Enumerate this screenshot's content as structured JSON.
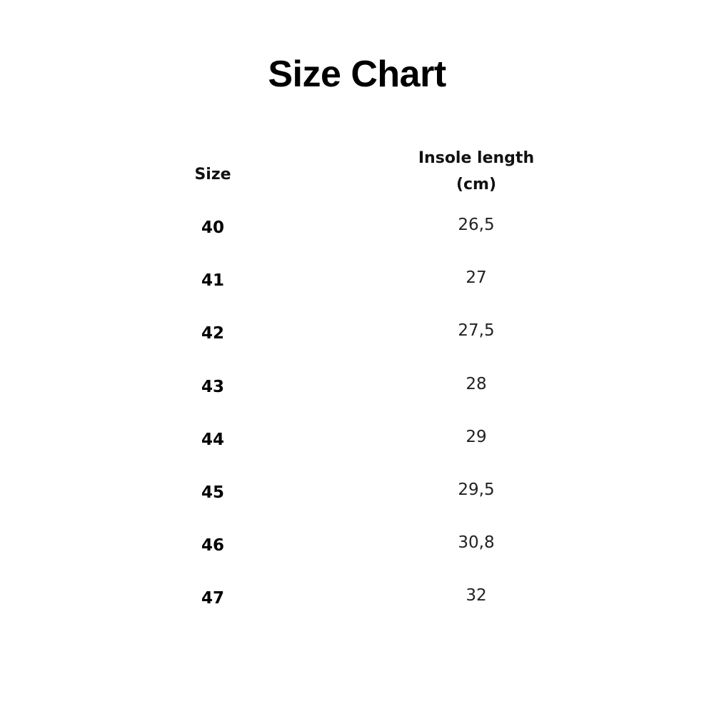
{
  "title": "Size Chart",
  "table": {
    "headers": {
      "size": "Size",
      "length_line1": "Insole length",
      "length_line2": "(cm)"
    },
    "rows": [
      {
        "size": "40",
        "length": "26,5"
      },
      {
        "size": "41",
        "length": "27"
      },
      {
        "size": "42",
        "length": "27,5"
      },
      {
        "size": "43",
        "length": "28"
      },
      {
        "size": "44",
        "length": "29"
      },
      {
        "size": "45",
        "length": "29,5"
      },
      {
        "size": "46",
        "length": "30,8"
      },
      {
        "size": "47",
        "length": "32"
      }
    ]
  }
}
